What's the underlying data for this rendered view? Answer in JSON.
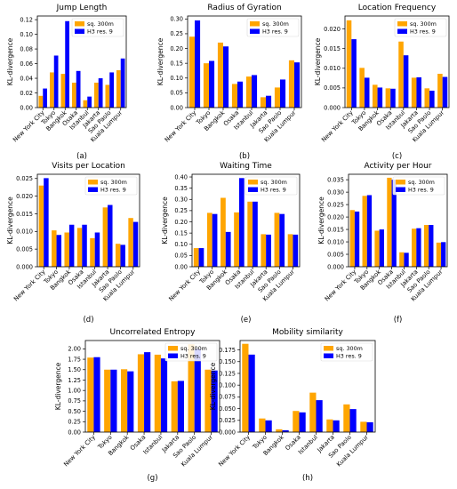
{
  "chart_data": [
    {
      "panel": "(a)",
      "type": "bar",
      "title": "Jump Length",
      "ylabel": "KL-divergence",
      "xlabel": "",
      "categories": [
        "New York City",
        "Tokyo",
        "Bangkok",
        "Osaka",
        "Istanbul",
        "Jakarta",
        "Sao Paolo",
        "Kuala Lumpur"
      ],
      "series": [
        {
          "name": "sq. 300m",
          "values": [
            0.016,
            0.048,
            0.046,
            0.034,
            0.01,
            0.034,
            0.031,
            0.051
          ]
        },
        {
          "name": "H3 res. 9",
          "values": [
            0.026,
            0.071,
            0.118,
            0.05,
            0.015,
            0.04,
            0.048,
            0.067
          ]
        }
      ],
      "ylim": [
        0,
        0.125
      ],
      "yticks": [
        0.0,
        0.02,
        0.04,
        0.06,
        0.08,
        0.1,
        0.12
      ],
      "ytick_labels": [
        "0.00",
        "0.02",
        "0.04",
        "0.06",
        "0.08",
        "0.10",
        "0.12"
      ],
      "legend": "top-right"
    },
    {
      "panel": "(b)",
      "type": "bar",
      "title": "Radius of Gyration",
      "ylabel": "KL-divergence",
      "xlabel": "",
      "categories": [
        "New York City",
        "Tokyo",
        "Bangkok",
        "Osaka",
        "Istanbul",
        "Jakarta",
        "Sao Paolo",
        "Kuala Lumpur"
      ],
      "series": [
        {
          "name": "sq. 300m",
          "values": [
            0.24,
            0.15,
            0.22,
            0.08,
            0.105,
            0.035,
            0.068,
            0.16
          ]
        },
        {
          "name": "H3 res. 9",
          "values": [
            0.295,
            0.158,
            0.207,
            0.088,
            0.11,
            0.04,
            0.095,
            0.153
          ]
        }
      ],
      "ylim": [
        0,
        0.31
      ],
      "yticks": [
        0.0,
        0.05,
        0.1,
        0.15,
        0.2,
        0.25,
        0.3
      ],
      "ytick_labels": [
        "0.00",
        "0.05",
        "0.10",
        "0.15",
        "0.20",
        "0.25",
        "0.30"
      ],
      "legend": "top-right"
    },
    {
      "panel": "(c)",
      "type": "bar",
      "title": "Location Frequency",
      "ylabel": "KL-divergence",
      "xlabel": "",
      "categories": [
        "New York City",
        "Tokyo",
        "Bangkok",
        "Osaka",
        "Istanbul",
        "Jakarta",
        "Sao Paolo",
        "Kuala Lumpur"
      ],
      "series": [
        {
          "name": "sq. 300m",
          "values": [
            0.0222,
            0.0101,
            0.0058,
            0.0049,
            0.0168,
            0.0076,
            0.0049,
            0.0086
          ]
        },
        {
          "name": "H3 res. 9",
          "values": [
            0.0174,
            0.0076,
            0.0051,
            0.0048,
            0.0133,
            0.0077,
            0.0043,
            0.0078
          ]
        }
      ],
      "ylim": [
        0,
        0.0233
      ],
      "yticks": [
        0.0,
        0.005,
        0.01,
        0.015,
        0.02
      ],
      "ytick_labels": [
        "0.000",
        "0.005",
        "0.010",
        "0.015",
        "0.020"
      ],
      "legend": "top-right"
    },
    {
      "panel": "(d)",
      "type": "bar",
      "title": "Visits per Location",
      "ylabel": "KL-divergence",
      "xlabel": "",
      "categories": [
        "New York City",
        "Tokyo",
        "Bangkok",
        "Osaka",
        "Istanbul",
        "Jakarta",
        "Sao Paolo",
        "Kuala Lumpur"
      ],
      "series": [
        {
          "name": "sq. 300m",
          "values": [
            0.023,
            0.0103,
            0.0097,
            0.011,
            0.0081,
            0.0168,
            0.0065,
            0.0138
          ]
        },
        {
          "name": "H3 res. 9",
          "values": [
            0.0251,
            0.009,
            0.0119,
            0.0119,
            0.0097,
            0.0175,
            0.0062,
            0.0127
          ]
        }
      ],
      "ylim": [
        0,
        0.0262
      ],
      "yticks": [
        0.0,
        0.005,
        0.01,
        0.015,
        0.02,
        0.025
      ],
      "ytick_labels": [
        "0.000",
        "0.005",
        "0.010",
        "0.015",
        "0.020",
        "0.025"
      ],
      "legend": "top-right"
    },
    {
      "panel": "(e)",
      "type": "bar",
      "title": "Waiting Time",
      "ylabel": "KL-divergence",
      "xlabel": "",
      "categories": [
        "New York City",
        "Tokyo",
        "Bangkok",
        "Osaka",
        "Istanbul",
        "Jakarta",
        "Sao Paolo",
        "Kuala Lumpur"
      ],
      "series": [
        {
          "name": "sq. 300m",
          "values": [
            0.083,
            0.24,
            0.307,
            0.242,
            0.29,
            0.145,
            0.24,
            0.145
          ]
        },
        {
          "name": "H3 res. 9",
          "values": [
            0.083,
            0.235,
            0.155,
            0.395,
            0.29,
            0.143,
            0.235,
            0.143
          ]
        }
      ],
      "ylim": [
        0,
        0.412
      ],
      "yticks": [
        0.0,
        0.05,
        0.1,
        0.15,
        0.2,
        0.25,
        0.3,
        0.35,
        0.4
      ],
      "ytick_labels": [
        "0.00",
        "0.05",
        "0.10",
        "0.15",
        "0.20",
        "0.25",
        "0.30",
        "0.35",
        "0.40"
      ],
      "legend": "top-right"
    },
    {
      "panel": "(f)",
      "type": "bar",
      "title": "Activity per Hour",
      "ylabel": "KL-divergence",
      "xlabel": "",
      "categories": [
        "New York City",
        "Tokyo",
        "Bangkok",
        "Osaka",
        "Istanbul",
        "Jakarta",
        "Sao Paolo",
        "Kuala Lumpur"
      ],
      "series": [
        {
          "name": "sq. 300m",
          "values": [
            0.0228,
            0.0285,
            0.0145,
            0.0358,
            0.0058,
            0.0153,
            0.0168,
            0.0097
          ]
        },
        {
          "name": "H3 res. 9",
          "values": [
            0.0222,
            0.0288,
            0.015,
            0.035,
            0.0056,
            0.0155,
            0.0168,
            0.0099
          ]
        }
      ],
      "ylim": [
        0,
        0.0372
      ],
      "yticks": [
        0.0,
        0.005,
        0.01,
        0.015,
        0.02,
        0.025,
        0.03,
        0.035
      ],
      "ytick_labels": [
        "0.000",
        "0.005",
        "0.010",
        "0.015",
        "0.020",
        "0.025",
        "0.030",
        "0.035"
      ],
      "legend": "top-right"
    },
    {
      "panel": "(g)",
      "type": "bar",
      "title": "Uncorrelated Entropy",
      "ylabel": "KL-divergence",
      "xlabel": "",
      "categories": [
        "New York City",
        "Tokyo",
        "Bangkok",
        "Osaka",
        "Istanbul",
        "Jakarta",
        "Sao Paolo",
        "Kuala Lumpur"
      ],
      "series": [
        {
          "name": "sq. 300m",
          "values": [
            1.79,
            1.5,
            1.51,
            1.87,
            1.86,
            1.22,
            2.11,
            1.5
          ]
        },
        {
          "name": "H3 res. 9",
          "values": [
            1.8,
            1.5,
            1.46,
            1.92,
            1.77,
            1.23,
            2.0,
            1.48
          ]
        }
      ],
      "ylim": [
        0,
        2.2
      ],
      "yticks": [
        0.0,
        0.25,
        0.5,
        0.75,
        1.0,
        1.25,
        1.5,
        1.75,
        2.0
      ],
      "ytick_labels": [
        "0.00",
        "0.25",
        "0.50",
        "0.75",
        "1.00",
        "1.25",
        "1.50",
        "1.75",
        "2.00"
      ],
      "legend": "top-right"
    },
    {
      "panel": "(h)",
      "type": "bar",
      "title": "Mobility similarity",
      "ylabel": "KL-divergence",
      "xlabel": "",
      "categories": [
        "New York City",
        "Tokyo",
        "Bangkok",
        "Osaka",
        "Istanbul",
        "Jakarta",
        "Sao Paolo",
        "Kuala Lumpur"
      ],
      "series": [
        {
          "name": "sq. 300m",
          "values": [
            0.188,
            0.029,
            0.006,
            0.045,
            0.084,
            0.027,
            0.059,
            0.022
          ]
        },
        {
          "name": "H3 res. 9",
          "values": [
            0.165,
            0.025,
            0.004,
            0.042,
            0.068,
            0.025,
            0.049,
            0.021
          ]
        }
      ],
      "ylim": [
        0,
        0.195
      ],
      "yticks": [
        0.0,
        0.025,
        0.05,
        0.075,
        0.1,
        0.125,
        0.15,
        0.175
      ],
      "ytick_labels": [
        "0.000",
        "0.025",
        "0.050",
        "0.075",
        "0.100",
        "0.125",
        "0.150",
        "0.175"
      ],
      "legend": "top-right"
    }
  ],
  "colors": {
    "series_0": "#FFA500",
    "series_1": "#0000FF"
  }
}
